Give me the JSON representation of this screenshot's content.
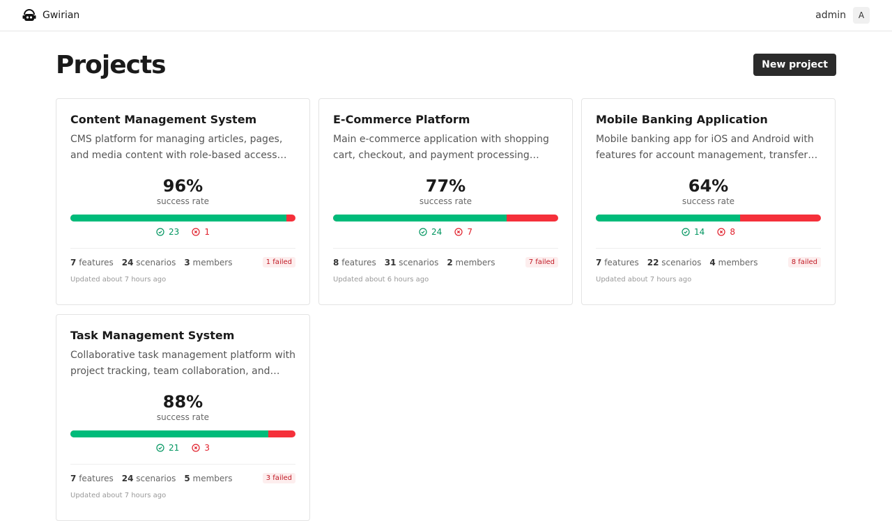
{
  "header": {
    "brand": "Gwirian",
    "user": "admin",
    "avatar": "A"
  },
  "page": {
    "title": "Projects",
    "new_button": "New project"
  },
  "colors": {
    "success": "#00bb7a",
    "failure": "#f5303a"
  },
  "projects": [
    {
      "title": "Content Management System",
      "description": "CMS platform for managing articles, pages, and media content with role-based access control.",
      "rate": "96%",
      "rate_value": 96,
      "rate_label": "success rate",
      "passed": "23",
      "failed": "1",
      "features": "7",
      "features_label": "features",
      "scenarios": "24",
      "scenarios_label": "scenarios",
      "members": "3",
      "members_label": "members",
      "failed_badge": "1 failed",
      "updated": "Updated about 7 hours ago"
    },
    {
      "title": "E-Commerce Platform",
      "description": "Main e-commerce application with shopping cart, checkout, and payment processing integration.",
      "rate": "77%",
      "rate_value": 77,
      "rate_label": "success rate",
      "passed": "24",
      "failed": "7",
      "features": "8",
      "features_label": "features",
      "scenarios": "31",
      "scenarios_label": "scenarios",
      "members": "2",
      "members_label": "members",
      "failed_badge": "7 failed",
      "updated": "Updated about 6 hours ago"
    },
    {
      "title": "Mobile Banking Application",
      "description": "Mobile banking app for iOS and Android with features for account management, transfers, and payments.",
      "rate": "64%",
      "rate_value": 64,
      "rate_label": "success rate",
      "passed": "14",
      "failed": "8",
      "features": "7",
      "features_label": "features",
      "scenarios": "22",
      "scenarios_label": "scenarios",
      "members": "4",
      "members_label": "members",
      "failed_badge": "8 failed",
      "updated": "Updated about 7 hours ago"
    },
    {
      "title": "Task Management System",
      "description": "Collaborative task management platform with project tracking, team collaboration, and reporting.",
      "rate": "88%",
      "rate_value": 88,
      "rate_label": "success rate",
      "passed": "21",
      "failed": "3",
      "features": "7",
      "features_label": "features",
      "scenarios": "24",
      "scenarios_label": "scenarios",
      "members": "5",
      "members_label": "members",
      "failed_badge": "3 failed",
      "updated": "Updated about 7 hours ago"
    }
  ]
}
